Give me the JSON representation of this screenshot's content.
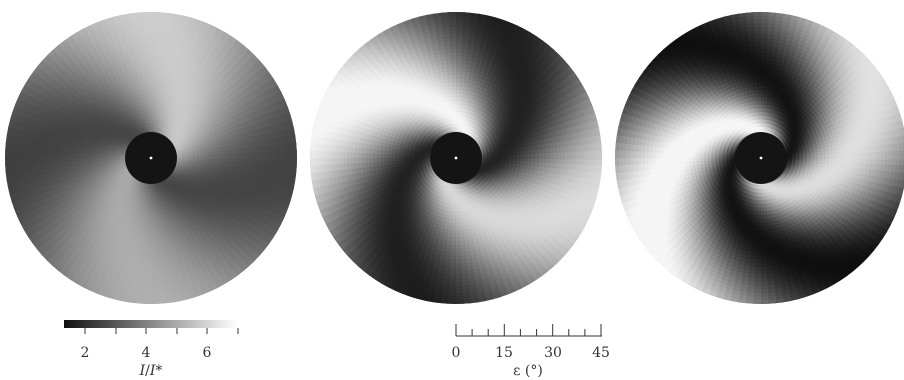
{
  "panels": [
    {
      "name": "panel-1",
      "swirl": 0.55,
      "phase": 0.4,
      "contrast": 0.22,
      "base": 0.5
    },
    {
      "name": "panel-2",
      "swirl": 0.95,
      "phase": 0.9,
      "contrast": 0.38,
      "base": 0.52
    },
    {
      "name": "panel-3",
      "swirl": 1.25,
      "phase": 1.3,
      "contrast": 0.42,
      "base": 0.5
    }
  ],
  "colorbar_left": {
    "ticks": [
      "2",
      "4",
      "6"
    ],
    "title_main": "I",
    "title_sep": "/",
    "title_sub": "I*",
    "gradient": [
      "#101010",
      "#ffffff"
    ]
  },
  "colorbar_right": {
    "ticks": [
      "0",
      "15",
      "30",
      "45"
    ],
    "title": "ε (°)"
  },
  "colors": {
    "hole": "#141414",
    "center_dot": "#ffffff",
    "axis": "#333333"
  }
}
